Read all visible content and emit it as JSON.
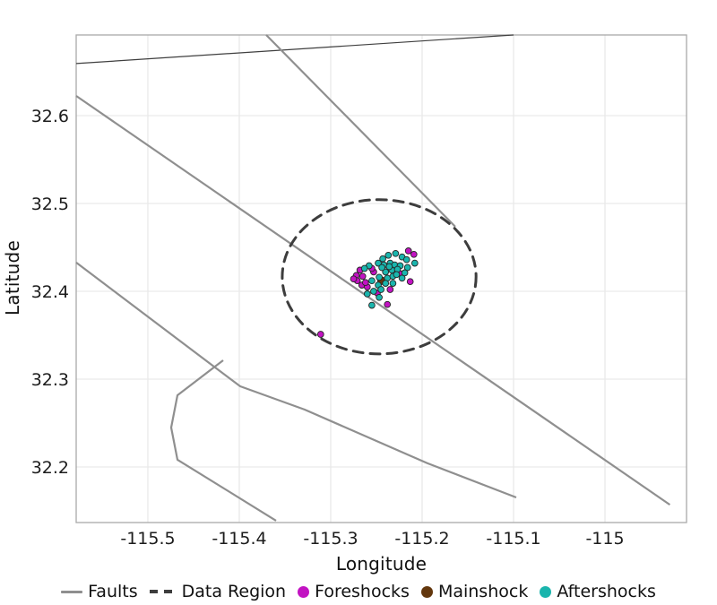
{
  "page": {
    "background": "#ffffff"
  },
  "chart_data": {
    "type": "scatter",
    "title": "",
    "xlabel": "Longitude",
    "ylabel": "Latitude",
    "xlim": [
      -115.5784,
      -114.9108
    ],
    "ylim": [
      32.1367,
      32.6918
    ],
    "grid": true,
    "legend_position": "bottom",
    "x_ticks": [
      -115.5,
      -115.4,
      -115.3,
      -115.2,
      -115.1,
      -115.0
    ],
    "x_tick_labels": [
      "-115.5",
      "-115.4",
      "-115.3",
      "-115.2",
      "-115.1",
      "-115"
    ],
    "y_ticks": [
      32.2,
      32.3,
      32.4,
      32.5,
      32.6
    ],
    "y_tick_labels": [
      "32.2",
      "32.3",
      "32.4",
      "32.5",
      "32.6"
    ],
    "grid_color": "#e9e9e9",
    "frame_color": "#a9a9a9",
    "faults": [
      {
        "name": "fault-thin-north",
        "color": "#3f3f3f",
        "width": 1.2,
        "points": [
          [
            -115.5784,
            32.6592
          ],
          [
            -115.1,
            32.6918
          ]
        ]
      },
      {
        "name": "fault-upper-diagonal",
        "color": "#8f8f8f",
        "width": 2.2,
        "points": [
          [
            -115.3706,
            32.6918
          ],
          [
            -115.1637,
            32.4735
          ]
        ]
      },
      {
        "name": "fault-long-diagonal",
        "color": "#8f8f8f",
        "width": 2.2,
        "points": [
          [
            -115.5784,
            32.6224
          ],
          [
            -114.929,
            32.157
          ]
        ]
      },
      {
        "name": "fault-southwest-diagonal",
        "color": "#8f8f8f",
        "width": 2.2,
        "points": [
          [
            -115.5784,
            32.4327
          ],
          [
            -115.4265,
            32.3133
          ],
          [
            -115.399,
            32.2918
          ],
          [
            -115.3284,
            32.2653
          ],
          [
            -115.1941,
            32.2041
          ],
          [
            -115.0971,
            32.1653
          ]
        ]
      },
      {
        "name": "fault-cucapah-bend",
        "color": "#8f8f8f",
        "width": 2.2,
        "points": [
          [
            -115.4176,
            32.3214
          ],
          [
            -115.4676,
            32.2816
          ],
          [
            -115.4745,
            32.2449
          ],
          [
            -115.4676,
            32.2082
          ],
          [
            -115.3598,
            32.1388
          ]
        ]
      }
    ],
    "data_region": {
      "center": [
        -115.247,
        32.4165
      ],
      "rx_deg": 0.106,
      "ry_deg": 0.0878,
      "color": "#3d3d3d",
      "stroke_width": 3,
      "dash": "11,8"
    },
    "series": [
      {
        "name": "Foreshocks",
        "color": "#c213c2",
        "marker_radius": 3.4,
        "points": [
          [
            -115.215,
            32.446
          ],
          [
            -115.209,
            32.442
          ],
          [
            -115.268,
            32.424
          ],
          [
            -115.272,
            32.418
          ],
          [
            -115.265,
            32.417
          ],
          [
            -115.271,
            32.412
          ],
          [
            -115.266,
            32.407
          ],
          [
            -115.26,
            32.405
          ],
          [
            -115.253,
            32.422
          ],
          [
            -115.224,
            32.42
          ],
          [
            -115.213,
            32.411
          ],
          [
            -115.235,
            32.402
          ],
          [
            -115.249,
            32.398
          ],
          [
            -115.238,
            32.385
          ],
          [
            -115.255,
            32.426
          ],
          [
            -115.275,
            32.414
          ],
          [
            -115.262,
            32.41
          ],
          [
            -115.311,
            32.351
          ]
        ]
      },
      {
        "name": "Mainshock",
        "color": "#63370d",
        "marker_radius": 4.3,
        "points": [
          [
            -115.2444,
            32.412
          ]
        ]
      },
      {
        "name": "Aftershocks",
        "color": "#1ab5ad",
        "marker_radius": 3.4,
        "points": [
          [
            -115.243,
            32.437
          ],
          [
            -115.237,
            32.441
          ],
          [
            -115.229,
            32.443
          ],
          [
            -115.222,
            32.439
          ],
          [
            -115.217,
            32.436
          ],
          [
            -115.235,
            32.432
          ],
          [
            -115.242,
            32.43
          ],
          [
            -115.248,
            32.432
          ],
          [
            -115.23,
            32.43
          ],
          [
            -115.224,
            32.429
          ],
          [
            -115.216,
            32.427
          ],
          [
            -115.208,
            32.432
          ],
          [
            -115.233,
            32.424
          ],
          [
            -115.24,
            32.422
          ],
          [
            -115.247,
            32.416
          ],
          [
            -115.238,
            32.415
          ],
          [
            -115.232,
            32.417
          ],
          [
            -115.222,
            32.415
          ],
          [
            -115.258,
            32.429
          ],
          [
            -115.263,
            32.426
          ],
          [
            -115.255,
            32.412
          ],
          [
            -115.248,
            32.407
          ],
          [
            -115.24,
            32.409
          ],
          [
            -115.232,
            32.409
          ],
          [
            -115.245,
            32.402
          ],
          [
            -115.253,
            32.4
          ],
          [
            -115.26,
            32.397
          ],
          [
            -115.247,
            32.393
          ],
          [
            -115.255,
            32.384
          ],
          [
            -115.227,
            32.425
          ],
          [
            -115.244,
            32.427
          ],
          [
            -115.236,
            32.428
          ],
          [
            -115.219,
            32.421
          ],
          [
            -115.228,
            32.419
          ]
        ]
      }
    ],
    "marker_stroke": "#262626"
  },
  "legend": {
    "items": [
      {
        "label": "Faults",
        "swatch": "line",
        "color": "#8f8f8f"
      },
      {
        "label": "Data Region",
        "swatch": "dashes",
        "color": "#3d3d3d"
      },
      {
        "label": "Foreshocks",
        "swatch": "dot",
        "color": "#c213c2"
      },
      {
        "label": "Mainshock",
        "swatch": "dot",
        "color": "#63370d"
      },
      {
        "label": "Aftershocks",
        "swatch": "dot",
        "color": "#1ab5ad"
      }
    ]
  }
}
